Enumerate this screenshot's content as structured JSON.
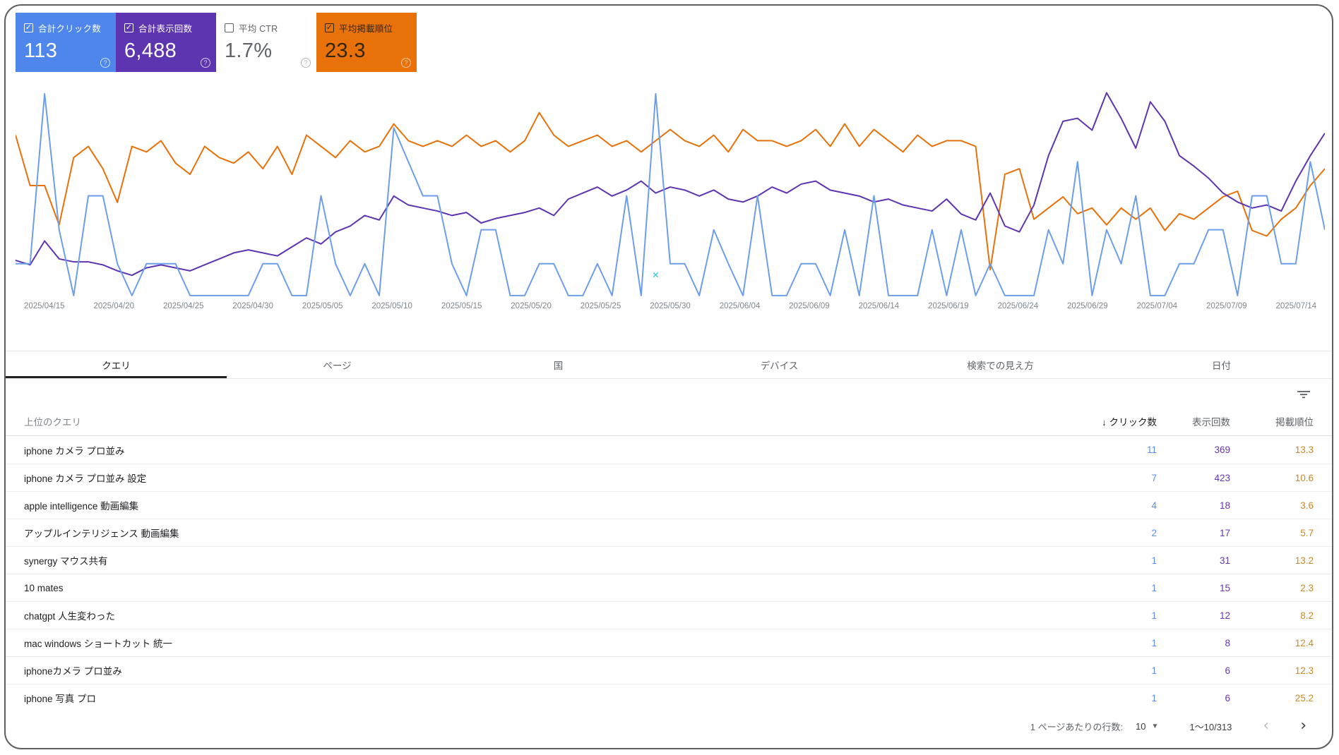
{
  "cards": [
    {
      "id": "clicks",
      "label": "合計クリック数",
      "value": "113",
      "checked": true,
      "bg": "#4e86ec",
      "fg": "#ffffff",
      "help_fg": "#ffffff"
    },
    {
      "id": "impressions",
      "label": "合計表示回数",
      "value": "6,488",
      "checked": true,
      "bg": "#5e35b1",
      "fg": "#ffffff",
      "help_fg": "#ffffff"
    },
    {
      "id": "ctr",
      "label": "平均 CTR",
      "value": "1.7%",
      "checked": false,
      "bg": "#ffffff",
      "fg": "#5f6368",
      "help_fg": "#9aa0a6"
    },
    {
      "id": "position",
      "label": "平均掲載順位",
      "value": "23.3",
      "checked": true,
      "bg": "#e8710a",
      "fg": "#33260f",
      "help_fg": "#f5e9dc"
    }
  ],
  "chart_data": {
    "type": "line",
    "title": "",
    "xlabel": "",
    "ylabel": "",
    "grid": false,
    "legend_position": "none",
    "x_tick_labels": [
      "2025/04/15",
      "2025/04/20",
      "2025/04/25",
      "2025/04/30",
      "2025/05/05",
      "2025/05/10",
      "2025/05/15",
      "2025/05/20",
      "2025/05/25",
      "2025/05/30",
      "2025/06/04",
      "2025/06/09",
      "2025/06/14",
      "2025/06/19",
      "2025/06/24",
      "2025/06/29",
      "2025/07/04",
      "2025/07/09",
      "2025/07/14"
    ],
    "x_daily_range": [
      "2025/04/15",
      "2025/07/14"
    ],
    "series": [
      {
        "id": "position",
        "name": "掲載順位",
        "color": "#e8710a",
        "axis_range": [
          0,
          40
        ],
        "inverted": true,
        "values": [
          11,
          20,
          20,
          27,
          15,
          13,
          17,
          23,
          13,
          14,
          12,
          16,
          18,
          13,
          15,
          16,
          14,
          17,
          13,
          18,
          11,
          13,
          15,
          12,
          14,
          13,
          9,
          12,
          13,
          12,
          13,
          11,
          13,
          12,
          14,
          12,
          7,
          11,
          13,
          12,
          11,
          13,
          12,
          14,
          12,
          10,
          12,
          13,
          11,
          14,
          10,
          12,
          12,
          13,
          12,
          10,
          13,
          9,
          13,
          10,
          12,
          14,
          11,
          13,
          12,
          12,
          13,
          35,
          18,
          17,
          26,
          24,
          22,
          25,
          24,
          27,
          24,
          26,
          24,
          28,
          25,
          26,
          24,
          22,
          21,
          28,
          29,
          26,
          24,
          20,
          17
        ]
      },
      {
        "id": "impressions",
        "name": "表示回数",
        "color": "#5e35b1",
        "axis_range": [
          0,
          150
        ],
        "inverted": false,
        "values": [
          25,
          22,
          38,
          26,
          24,
          24,
          22,
          18,
          15,
          20,
          22,
          20,
          18,
          22,
          26,
          30,
          32,
          30,
          28,
          34,
          40,
          36,
          44,
          48,
          55,
          52,
          68,
          62,
          60,
          58,
          55,
          57,
          50,
          53,
          55,
          57,
          60,
          55,
          66,
          70,
          74,
          68,
          72,
          78,
          70,
          74,
          72,
          68,
          72,
          66,
          64,
          68,
          74,
          70,
          76,
          78,
          72,
          70,
          68,
          64,
          66,
          62,
          60,
          58,
          66,
          56,
          52,
          70,
          48,
          44,
          62,
          95,
          118,
          120,
          112,
          137,
          120,
          100,
          131,
          118,
          95,
          88,
          80,
          70,
          64,
          60,
          62,
          58,
          78,
          95,
          110
        ]
      },
      {
        "id": "clicks",
        "name": "クリック数",
        "color": "#6d9eeb",
        "axis_range": [
          0,
          6.6
        ],
        "inverted": false,
        "values": [
          1,
          1,
          6,
          2,
          0,
          3,
          3,
          1,
          0,
          1,
          1,
          1,
          0,
          0,
          0,
          0,
          0,
          1,
          1,
          0,
          0,
          3,
          1,
          0,
          1,
          0,
          5,
          4,
          3,
          3,
          1,
          0,
          2,
          2,
          0,
          0,
          1,
          1,
          0,
          0,
          1,
          0,
          3,
          0,
          6,
          1,
          1,
          0,
          2,
          1,
          0,
          3,
          0,
          0,
          1,
          1,
          0,
          2,
          0,
          3,
          0,
          0,
          0,
          2,
          0,
          2,
          0,
          1,
          0,
          0,
          0,
          2,
          1,
          4,
          0,
          2,
          1,
          3,
          0,
          0,
          1,
          1,
          2,
          2,
          0,
          3,
          3,
          1,
          1,
          4,
          2
        ]
      }
    ],
    "annotation": {
      "icon": "×",
      "color": "#4dd0e1",
      "x_index": 44,
      "y_frac": 0.9
    }
  },
  "tabs": [
    {
      "label": "クエリ",
      "selected": true
    },
    {
      "label": "ページ",
      "selected": false
    },
    {
      "label": "国",
      "selected": false
    },
    {
      "label": "デバイス",
      "selected": false
    },
    {
      "label": "検索での見え方",
      "selected": false
    },
    {
      "label": "日付",
      "selected": false
    }
  ],
  "table": {
    "first_col_header": "上位のクエリ",
    "sort_icon": "↓",
    "num_headers": [
      "クリック数",
      "表示回数",
      "掲載順位"
    ],
    "rows": [
      {
        "query": "iphone カメラ プロ並み",
        "clicks": "11",
        "impressions": "369",
        "position": "13.3"
      },
      {
        "query": "iphone カメラ プロ並み 設定",
        "clicks": "7",
        "impressions": "423",
        "position": "10.6"
      },
      {
        "query": "apple intelligence 動画編集",
        "clicks": "4",
        "impressions": "18",
        "position": "3.6"
      },
      {
        "query": "アップルインテリジェンス 動画編集",
        "clicks": "2",
        "impressions": "17",
        "position": "5.7"
      },
      {
        "query": "synergy マウス共有",
        "clicks": "1",
        "impressions": "31",
        "position": "13.2"
      },
      {
        "query": "10 mates",
        "clicks": "1",
        "impressions": "15",
        "position": "2.3"
      },
      {
        "query": "chatgpt 人生変わった",
        "clicks": "1",
        "impressions": "12",
        "position": "8.2"
      },
      {
        "query": "mac windows ショートカット 統一",
        "clicks": "1",
        "impressions": "8",
        "position": "12.4"
      },
      {
        "query": "iphoneカメラ プロ並み",
        "clicks": "1",
        "impressions": "6",
        "position": "12.3"
      },
      {
        "query": "iphone 写真 プロ",
        "clicks": "1",
        "impressions": "6",
        "position": "25.2"
      }
    ]
  },
  "footer": {
    "rows_label": "1 ページあたりの行数:",
    "rows_value": "10",
    "caret_icon": "▼",
    "range": "1〜10/313",
    "prev_icon": "‹",
    "next_icon": "›"
  },
  "colors": {
    "clicks": "#4e86ec",
    "impressions": "#5e35b1",
    "ctr_text": "#5f6368",
    "position": "#e8710a",
    "annotation": "#4dd0e1",
    "tab_underline": "#212121"
  }
}
